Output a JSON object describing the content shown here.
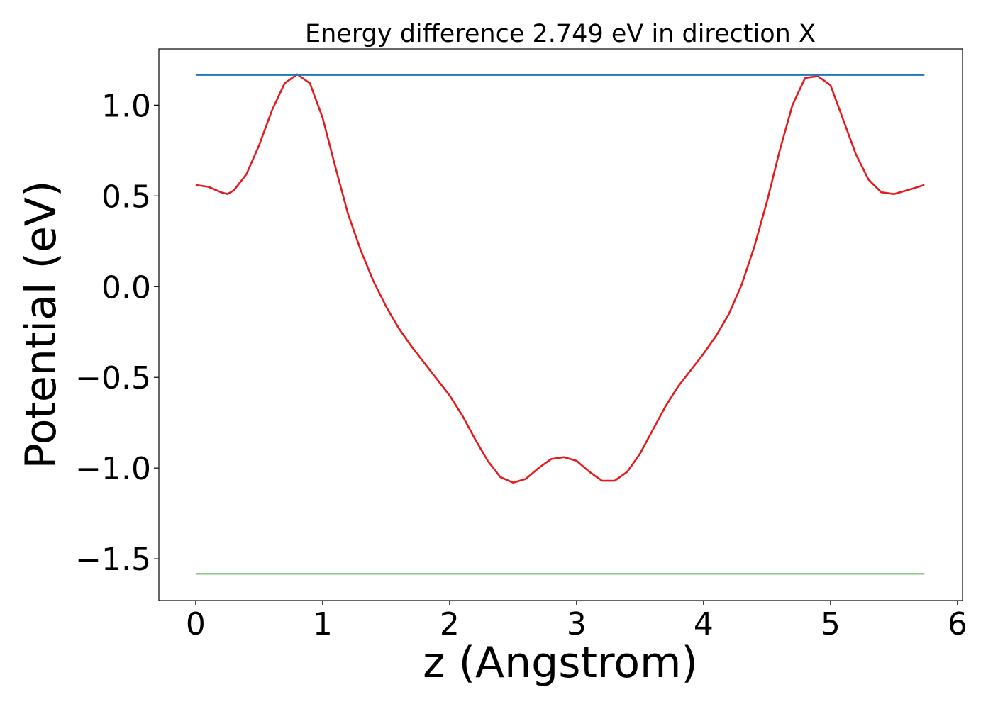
{
  "chart_data": {
    "type": "line",
    "title": "Energy difference 2.749 eV in direction X",
    "xlabel": "z (Angstrom)",
    "ylabel": "Potential (eV)",
    "xlim": [
      -0.29,
      6.04
    ],
    "ylim": [
      -1.73,
      1.31
    ],
    "xticks": [
      0,
      1,
      2,
      3,
      4,
      5,
      6
    ],
    "xtick_labels": [
      "0",
      "1",
      "2",
      "3",
      "4",
      "5",
      "6"
    ],
    "yticks": [
      -1.5,
      -1.0,
      -0.5,
      0.0,
      0.5,
      1.0
    ],
    "ytick_labels": [
      "−1.5",
      "−1.0",
      "−0.5",
      "0.0",
      "0.5",
      "1.0"
    ],
    "grid": false,
    "series": [
      {
        "color": "#e41a1c",
        "x": [
          0.0,
          0.1,
          0.2,
          0.25,
          0.3,
          0.4,
          0.5,
          0.6,
          0.7,
          0.8,
          0.9,
          1.0,
          1.1,
          1.2,
          1.3,
          1.4,
          1.5,
          1.6,
          1.7,
          1.8,
          1.9,
          2.0,
          2.1,
          2.2,
          2.3,
          2.4,
          2.5,
          2.6,
          2.7,
          2.8,
          2.9,
          3.0,
          3.1,
          3.2,
          3.3,
          3.4,
          3.5,
          3.6,
          3.7,
          3.8,
          3.9,
          4.0,
          4.1,
          4.2,
          4.3,
          4.4,
          4.5,
          4.6,
          4.7,
          4.8,
          4.9,
          5.0,
          5.1,
          5.2,
          5.3,
          5.4,
          5.5,
          5.6,
          5.74
        ],
        "y": [
          0.56,
          0.55,
          0.52,
          0.51,
          0.53,
          0.62,
          0.78,
          0.97,
          1.12,
          1.17,
          1.12,
          0.93,
          0.66,
          0.4,
          0.2,
          0.03,
          -0.11,
          -0.23,
          -0.33,
          -0.42,
          -0.51,
          -0.6,
          -0.71,
          -0.84,
          -0.96,
          -1.05,
          -1.08,
          -1.06,
          -1.0,
          -0.95,
          -0.94,
          -0.96,
          -1.02,
          -1.07,
          -1.07,
          -1.02,
          -0.92,
          -0.79,
          -0.66,
          -0.55,
          -0.46,
          -0.37,
          -0.27,
          -0.15,
          0.01,
          0.22,
          0.47,
          0.75,
          1.0,
          1.15,
          1.16,
          1.11,
          0.92,
          0.73,
          0.59,
          0.52,
          0.51,
          0.53,
          0.56
        ]
      },
      {
        "color": "#1f77b4",
        "x": [
          0.0,
          5.74
        ],
        "y": [
          1.166,
          1.166
        ]
      },
      {
        "color": "#4daf4a",
        "x": [
          0.0,
          5.74
        ],
        "y": [
          -1.583,
          -1.583
        ]
      }
    ]
  }
}
